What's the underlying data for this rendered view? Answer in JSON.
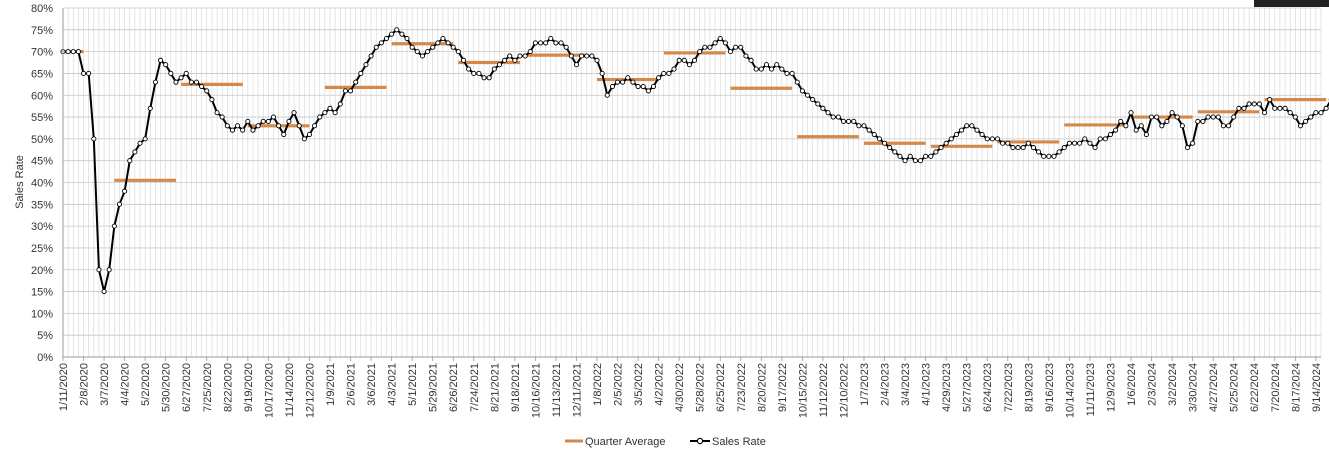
{
  "chart_data": {
    "type": "line",
    "title": "",
    "xlabel": "",
    "ylabel": "Sales Rate",
    "ylim": [
      0,
      0.8
    ],
    "y_ticks": [
      "0%",
      "5%",
      "10%",
      "15%",
      "20%",
      "25%",
      "30%",
      "35%",
      "40%",
      "45%",
      "50%",
      "55%",
      "60%",
      "65%",
      "70%",
      "75%",
      "80%"
    ],
    "x_tick_labels": [
      "1/11/2020",
      "2/8/2020",
      "3/7/2020",
      "4/4/2020",
      "5/2/2020",
      "5/30/2020",
      "6/27/2020",
      "7/25/2020",
      "8/22/2020",
      "9/19/2020",
      "10/17/2020",
      "11/14/2020",
      "12/12/2020",
      "1/9/2021",
      "2/6/2021",
      "3/6/2021",
      "4/3/2021",
      "5/1/2021",
      "5/29/2021",
      "6/26/2021",
      "7/24/2021",
      "8/21/2021",
      "9/18/2021",
      "10/16/2021",
      "11/13/2021",
      "12/11/2021",
      "1/8/2022",
      "2/5/2022",
      "3/5/2022",
      "4/2/2022",
      "4/30/2022",
      "5/28/2022",
      "6/25/2022",
      "7/23/2022",
      "8/20/2022",
      "9/17/2022",
      "10/15/2022",
      "11/12/2022",
      "12/10/2022",
      "1/7/2023",
      "2/4/2023",
      "3/4/2023",
      "4/1/2023",
      "4/29/2023",
      "5/27/2023",
      "6/24/2023",
      "7/22/2023",
      "8/19/2023",
      "9/16/2023",
      "10/14/2023",
      "11/11/2023",
      "12/9/2023",
      "1/6/2024",
      "2/3/2024",
      "3/2/2024",
      "3/30/2024",
      "4/27/2024",
      "5/25/2024",
      "6/22/2024",
      "7/20/2024",
      "8/17/2024",
      "9/14/2024"
    ],
    "grid": true,
    "legend_position": "bottom",
    "legend": [
      "Quarter Average",
      "Sales Rate"
    ],
    "series": [
      {
        "name": "Sales Rate",
        "color": "#000000",
        "values": [
          0.7,
          0.7,
          0.7,
          0.7,
          0.65,
          0.65,
          0.5,
          0.2,
          0.15,
          0.2,
          0.3,
          0.35,
          0.38,
          0.45,
          0.47,
          0.49,
          0.5,
          0.57,
          0.63,
          0.68,
          0.67,
          0.65,
          0.63,
          0.64,
          0.65,
          0.63,
          0.63,
          0.62,
          0.61,
          0.59,
          0.56,
          0.55,
          0.53,
          0.52,
          0.53,
          0.52,
          0.54,
          0.52,
          0.53,
          0.54,
          0.54,
          0.55,
          0.53,
          0.51,
          0.54,
          0.56,
          0.53,
          0.5,
          0.51,
          0.53,
          0.55,
          0.56,
          0.57,
          0.56,
          0.58,
          0.61,
          0.61,
          0.63,
          0.65,
          0.67,
          0.69,
          0.71,
          0.72,
          0.73,
          0.74,
          0.75,
          0.74,
          0.73,
          0.71,
          0.7,
          0.69,
          0.7,
          0.71,
          0.72,
          0.73,
          0.72,
          0.71,
          0.7,
          0.68,
          0.66,
          0.65,
          0.65,
          0.64,
          0.64,
          0.66,
          0.67,
          0.68,
          0.69,
          0.68,
          0.69,
          0.69,
          0.7,
          0.72,
          0.72,
          0.72,
          0.73,
          0.72,
          0.72,
          0.71,
          0.69,
          0.67,
          0.69,
          0.69,
          0.69,
          0.68,
          0.65,
          0.6,
          0.62,
          0.63,
          0.63,
          0.64,
          0.63,
          0.62,
          0.62,
          0.61,
          0.62,
          0.64,
          0.65,
          0.65,
          0.66,
          0.68,
          0.68,
          0.67,
          0.68,
          0.7,
          0.71,
          0.71,
          0.72,
          0.73,
          0.72,
          0.7,
          0.71,
          0.71,
          0.69,
          0.68,
          0.66,
          0.66,
          0.67,
          0.66,
          0.67,
          0.66,
          0.65,
          0.65,
          0.63,
          0.61,
          0.6,
          0.59,
          0.58,
          0.57,
          0.56,
          0.55,
          0.55,
          0.54,
          0.54,
          0.54,
          0.53,
          0.53,
          0.52,
          0.51,
          0.5,
          0.49,
          0.48,
          0.47,
          0.46,
          0.45,
          0.46,
          0.45,
          0.45,
          0.46,
          0.46,
          0.47,
          0.48,
          0.49,
          0.5,
          0.51,
          0.52,
          0.53,
          0.53,
          0.52,
          0.51,
          0.5,
          0.5,
          0.5,
          0.49,
          0.49,
          0.48,
          0.48,
          0.48,
          0.49,
          0.48,
          0.47,
          0.46,
          0.46,
          0.46,
          0.47,
          0.48,
          0.49,
          0.49,
          0.49,
          0.5,
          0.49,
          0.48,
          0.5,
          0.5,
          0.51,
          0.52,
          0.54,
          0.53,
          0.56,
          0.52,
          0.53,
          0.51,
          0.55,
          0.55,
          0.53,
          0.54,
          0.56,
          0.55,
          0.53,
          0.48,
          0.49,
          0.54,
          0.54,
          0.55,
          0.55,
          0.55,
          0.53,
          0.53,
          0.55,
          0.57,
          0.57,
          0.58,
          0.58,
          0.58,
          0.56,
          0.59,
          0.57,
          0.57,
          0.57,
          0.56,
          0.55,
          0.53,
          0.54,
          0.55,
          0.56,
          0.56,
          0.57,
          0.59,
          0.61,
          0.58,
          0.6,
          0.59,
          0.58,
          0.59
        ]
      },
      {
        "name": "Quarter Average",
        "color": "#d4894a",
        "segments": [
          {
            "from": "1/11/2020",
            "to": "2/8/2020",
            "value": 0.7
          },
          {
            "from": "3/21/2020",
            "to": "6/13/2020",
            "value": 0.405
          },
          {
            "from": "6/20/2020",
            "to": "9/12/2020",
            "value": 0.625
          },
          {
            "from": "9/19/2020",
            "to": "12/12/2020",
            "value": 0.53
          },
          {
            "from": "1/2/2021",
            "to": "3/27/2021",
            "value": 0.618
          },
          {
            "from": "4/3/2021",
            "to": "6/26/2021",
            "value": 0.718
          },
          {
            "from": "7/3/2021",
            "to": "9/25/2021",
            "value": 0.675
          },
          {
            "from": "10/2/2021",
            "to": "12/25/2021",
            "value": 0.692
          },
          {
            "from": "1/8/2022",
            "to": "4/2/2022",
            "value": 0.636
          },
          {
            "from": "4/9/2022",
            "to": "7/2/2022",
            "value": 0.697
          },
          {
            "from": "7/9/2022",
            "to": "10/1/2022",
            "value": 0.616
          },
          {
            "from": "10/8/2022",
            "to": "12/31/2022",
            "value": 0.505
          },
          {
            "from": "1/7/2023",
            "to": "4/1/2023",
            "value": 0.49
          },
          {
            "from": "4/8/2023",
            "to": "7/1/2023",
            "value": 0.483
          },
          {
            "from": "7/8/2023",
            "to": "9/30/2023",
            "value": 0.493
          },
          {
            "from": "10/7/2023",
            "to": "12/30/2023",
            "value": 0.532
          },
          {
            "from": "1/6/2024",
            "to": "3/30/2024",
            "value": 0.55
          },
          {
            "from": "4/6/2024",
            "to": "6/29/2024",
            "value": 0.562
          },
          {
            "from": "7/6/2024",
            "to": "9/28/2024",
            "value": 0.59
          }
        ]
      }
    ]
  }
}
